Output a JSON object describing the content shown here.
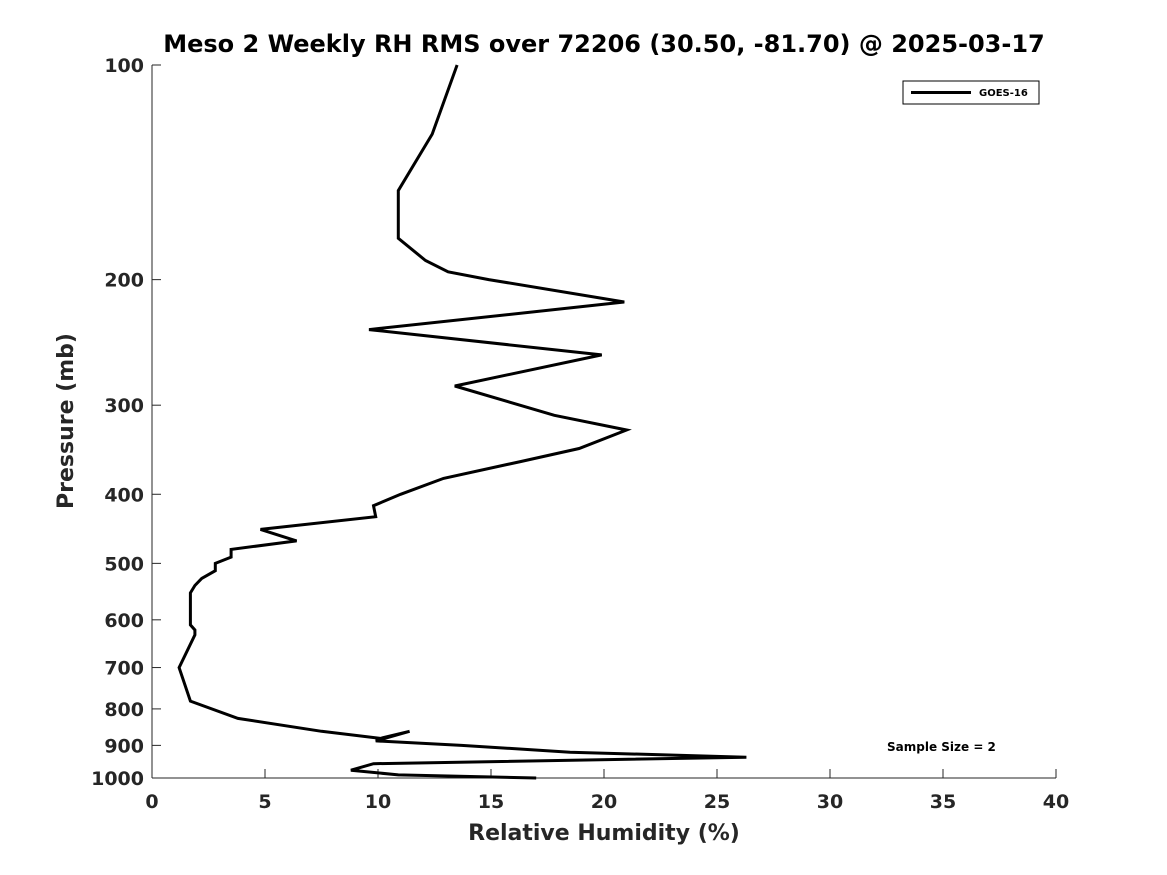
{
  "chart_data": {
    "type": "line",
    "title": "Meso 2 Weekly RH RMS over 72206 (30.50, -81.70) @ 2025-03-17",
    "xlabel": "Relative Humidity (%)",
    "ylabel": "Pressure (mb)",
    "xlim": [
      0,
      40
    ],
    "ylim": [
      100,
      1000
    ],
    "y_scale": "log",
    "y_reversed": true,
    "x_ticks": [
      0,
      5,
      10,
      15,
      20,
      25,
      30,
      35,
      40
    ],
    "y_ticks": [
      100,
      200,
      300,
      400,
      500,
      600,
      700,
      800,
      900,
      1000
    ],
    "grid": false,
    "legend_position": "top-right",
    "annotation": "Sample Size = 2",
    "series": [
      {
        "name": "GOES-16",
        "color": "#000000",
        "x": [
          13.5,
          12.4,
          10.9,
          10.9,
          12.1,
          13.1,
          14.9,
          20.9,
          9.6,
          19.9,
          13.4,
          17.8,
          21.0,
          18.9,
          16.3,
          12.9,
          11.0,
          9.8,
          9.9,
          4.8,
          6.4,
          3.5,
          3.5,
          2.8,
          2.8,
          2.2,
          1.9,
          1.7,
          1.7,
          1.9,
          1.9,
          1.2,
          1.7,
          3.8,
          7.5,
          10.1,
          11.4,
          9.9,
          13.7,
          18.5,
          26.3,
          9.8,
          8.8,
          10.9,
          17.0
        ],
        "y": [
          100,
          125,
          150,
          175,
          188,
          195,
          200,
          215,
          235,
          255,
          282,
          310,
          325,
          345,
          360,
          380,
          400,
          415,
          430,
          448,
          465,
          478,
          490,
          500,
          512,
          525,
          537,
          550,
          610,
          620,
          630,
          700,
          780,
          825,
          860,
          880,
          860,
          887,
          900,
          920,
          935,
          955,
          975,
          990,
          1000
        ]
      }
    ]
  }
}
